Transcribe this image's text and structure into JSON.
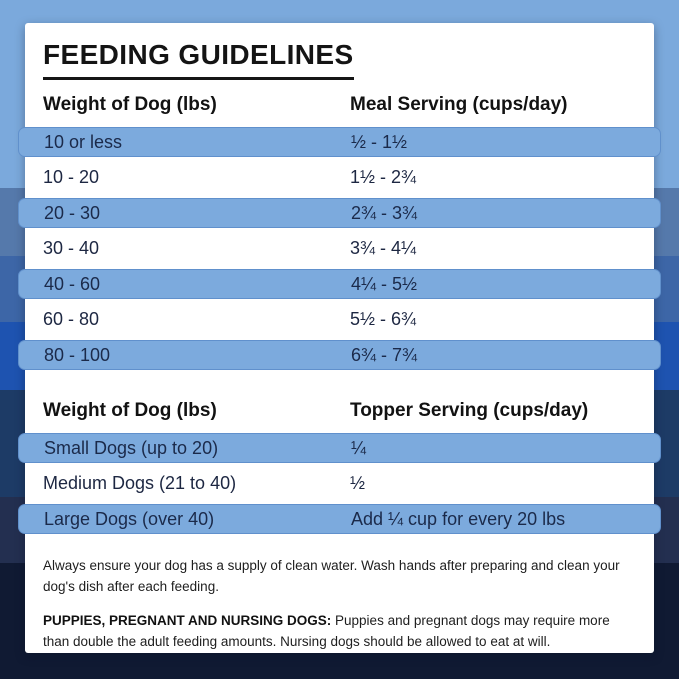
{
  "title": "FEEDING GUIDELINES",
  "colors": {
    "bands": [
      "#7BA9DC",
      "#5579AB",
      "#3D66A7",
      "#1E53B0",
      "#1D3B66",
      "#232F50",
      "#101A33"
    ],
    "row_highlight": "#7CAADD",
    "row_highlight_border": "#6090CC",
    "card_background": "#FFFFFF",
    "title_text": "#141414",
    "row_text": "#1D2742"
  },
  "meal_table": {
    "col1_header": "Weight of Dog (lbs)",
    "col2_header": "Meal Serving (cups/day)",
    "rows": [
      {
        "weight": "10 or less",
        "serving": "½ - 1½",
        "highlighted": true
      },
      {
        "weight": "10 - 20",
        "serving": "1½ - 2¾",
        "highlighted": false
      },
      {
        "weight": "20 - 30",
        "serving": "2¾ - 3¾",
        "highlighted": true
      },
      {
        "weight": "30 - 40",
        "serving": "3¾ - 4¼",
        "highlighted": false
      },
      {
        "weight": "40 - 60",
        "serving": "4¼ - 5½",
        "highlighted": true
      },
      {
        "weight": "60 - 80",
        "serving": "5½ - 6¾",
        "highlighted": false
      },
      {
        "weight": "80 - 100",
        "serving": "6¾ - 7¾",
        "highlighted": true
      }
    ]
  },
  "topper_table": {
    "col1_header": "Weight of Dog (lbs)",
    "col2_header": "Topper Serving (cups/day)",
    "rows": [
      {
        "weight": "Small Dogs (up to 20)",
        "serving": "¼",
        "highlighted": true
      },
      {
        "weight": "Medium Dogs (21 to 40)",
        "serving": "½",
        "highlighted": false
      },
      {
        "weight": "Large Dogs (over 40)",
        "serving": "Add ¼ cup for every 20 lbs",
        "highlighted": true
      }
    ]
  },
  "notes": {
    "water": "Always ensure your dog has a supply of clean water. Wash hands after preparing and clean your dog's dish after each feeding.",
    "puppies_label": "PUPPIES, PREGNANT AND NURSING DOGS:",
    "puppies_text": " Puppies and pregnant dogs may require more than double the adult feeding amounts. Nursing dogs should be allowed to eat at will."
  }
}
